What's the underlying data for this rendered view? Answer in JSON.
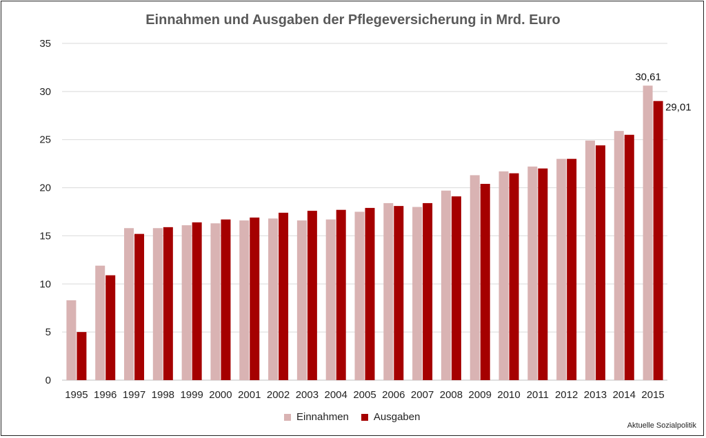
{
  "chart_data": {
    "type": "bar",
    "title": "Einnahmen und Ausgaben der Pflegeversicherung in Mrd. Euro",
    "categories": [
      "1995",
      "1996",
      "1997",
      "1998",
      "1999",
      "2000",
      "2001",
      "2002",
      "2003",
      "2004",
      "2005",
      "2006",
      "2007",
      "2008",
      "2009",
      "2010",
      "2011",
      "2012",
      "2013",
      "2014",
      "2015"
    ],
    "series": [
      {
        "name": "Einnahmen",
        "color": "#d9b3b3",
        "values": [
          8.3,
          11.9,
          15.8,
          15.8,
          16.1,
          16.3,
          16.6,
          16.8,
          16.6,
          16.7,
          17.5,
          18.4,
          18.0,
          19.7,
          21.3,
          21.7,
          22.2,
          23.0,
          24.9,
          25.9,
          30.61
        ]
      },
      {
        "name": "Ausgaben",
        "color": "#a50000",
        "values": [
          5.0,
          10.9,
          15.2,
          15.9,
          16.4,
          16.7,
          16.9,
          17.4,
          17.6,
          17.7,
          17.9,
          18.1,
          18.4,
          19.1,
          20.4,
          21.5,
          22.0,
          23.0,
          24.4,
          25.5,
          29.01
        ]
      }
    ],
    "data_labels": [
      {
        "series": "Einnahmen",
        "category": "2015",
        "text": "30,61"
      },
      {
        "series": "Ausgaben",
        "category": "2015",
        "text": "29,01"
      }
    ],
    "yticks": [
      "0",
      "5",
      "10",
      "15",
      "20",
      "25",
      "30",
      "35"
    ],
    "ylim": [
      0,
      35
    ],
    "xlabel": "",
    "ylabel": "",
    "grid": true,
    "legend_position": "bottom-center"
  },
  "legend": {
    "items": [
      {
        "label": "Einnahmen",
        "color": "#d9b3b3"
      },
      {
        "label": "Ausgaben",
        "color": "#a50000"
      }
    ]
  },
  "source": "Aktuelle Sozialpolitik"
}
